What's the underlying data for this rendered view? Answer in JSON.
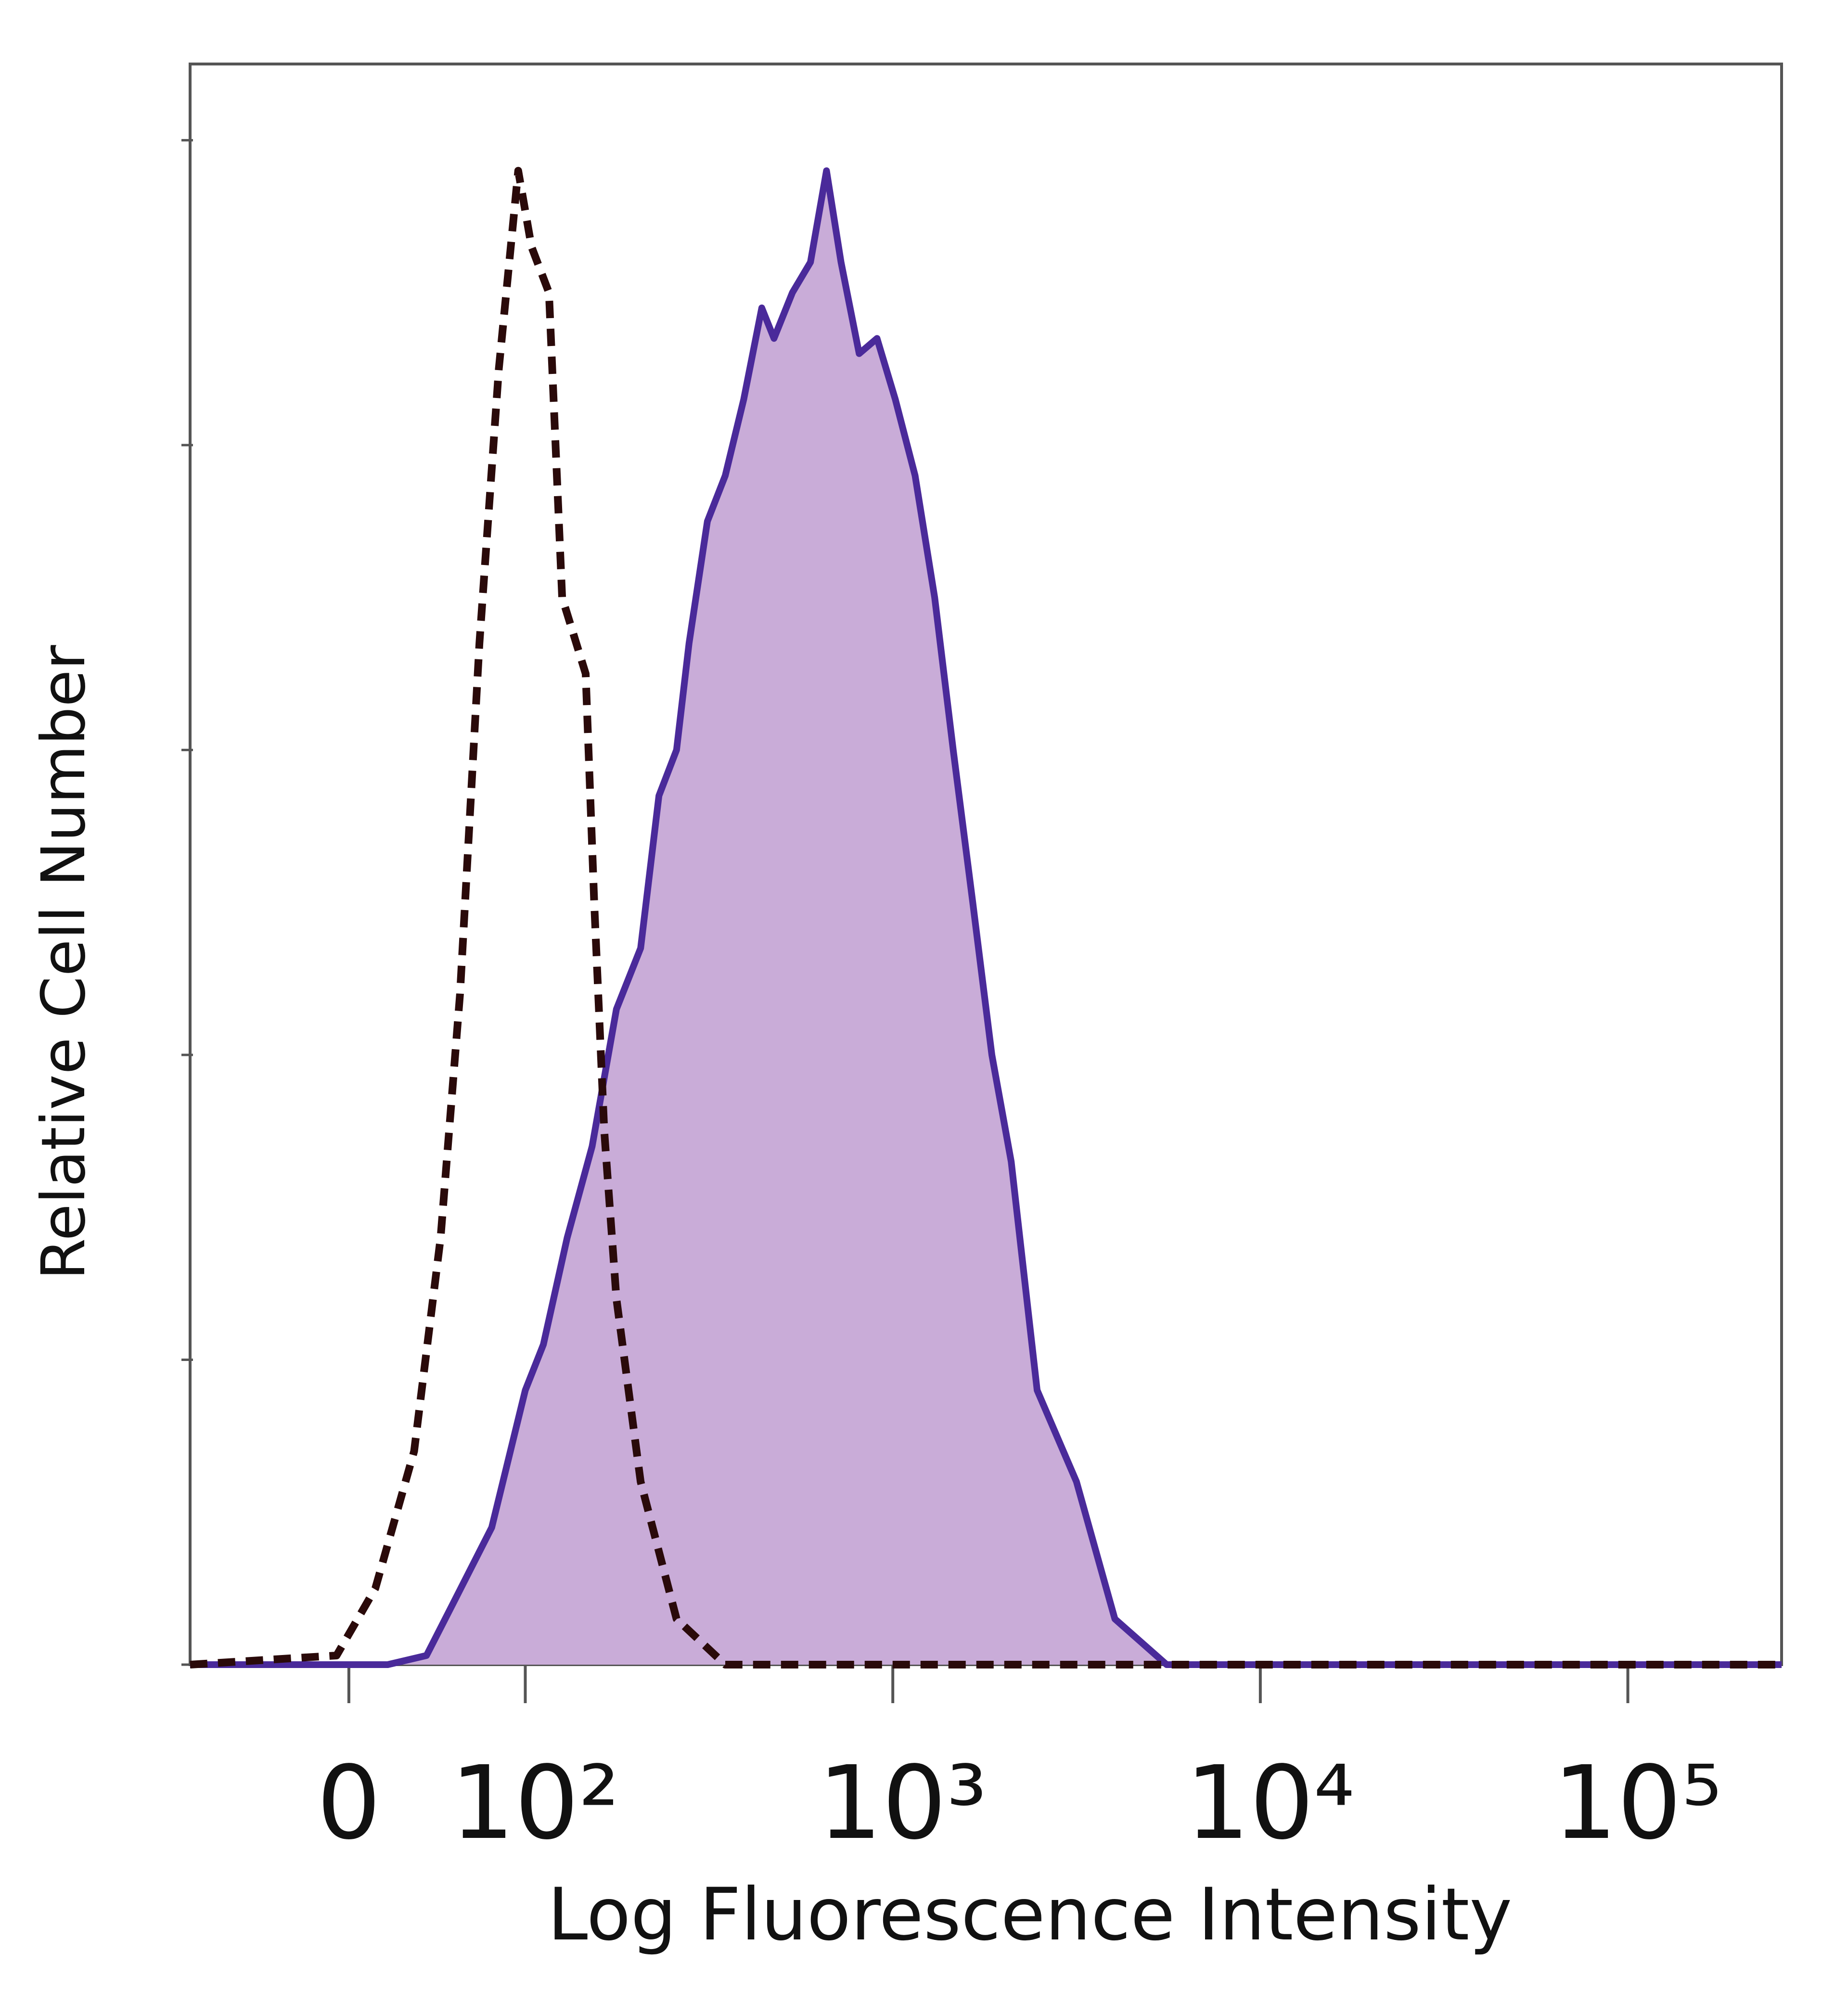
{
  "chart_data": {
    "type": "histogram-overlay",
    "xlabel": "Log Fluorescence Intensity",
    "ylabel": "Relative Cell Number",
    "xscale": "biexponential",
    "xlim": [
      -90,
      262000
    ],
    "xticks": [
      0,
      {
        "value": 100,
        "label": "10²"
      },
      {
        "value": 1000,
        "label": "10³"
      },
      {
        "value": 10000,
        "label": "10⁴"
      },
      {
        "value": 100000,
        "label": "10⁵"
      }
    ],
    "ylim": [
      0,
      105
    ],
    "yticks": [
      {
        "value": 0,
        "label": null
      },
      {
        "value": 20,
        "label": null
      },
      {
        "value": 40,
        "label": null
      },
      {
        "value": 60,
        "label": null
      },
      {
        "value": 80,
        "label": null
      },
      {
        "value": 100,
        "label": null
      }
    ],
    "series": [
      {
        "color": "#4a2a9a",
        "fill": "#c9acd8",
        "style": "solid",
        "x": [
          -90,
          22,
          44,
          59,
          81,
          100,
          112,
          130,
          152,
          177,
          206,
          231,
          258,
          279,
          313,
          350,
          393,
          440,
          475,
          533,
          597,
          660,
          723,
          810,
          906,
          1016,
          1150,
          1300,
          1460,
          1650,
          1860,
          2100,
          2470,
          3160,
          4020,
          5560,
          262000
        ],
        "values": [
          0,
          0,
          0.6,
          4,
          9,
          18,
          21,
          28,
          34,
          43,
          47,
          57,
          60,
          67,
          75,
          78,
          83,
          89,
          87,
          90,
          92,
          98,
          92,
          86,
          87,
          83,
          78,
          70,
          60,
          50,
          40,
          33,
          18,
          12,
          3,
          0,
          0
        ]
      },
      {
        "color": "#2a0a0a",
        "fill": null,
        "style": "dashed",
        "x": [
          -90,
          -7,
          15,
          37,
          52,
          63,
          74,
          85,
          96,
          104,
          116,
          126,
          146,
          154,
          164,
          177,
          206,
          258,
          350,
          262000
        ],
        "values": [
          0,
          0.6,
          5,
          14,
          28,
          44,
          67,
          85,
          98,
          93,
          90,
          70,
          65,
          50,
          35,
          24,
          12,
          3,
          0,
          0
        ]
      }
    ]
  }
}
